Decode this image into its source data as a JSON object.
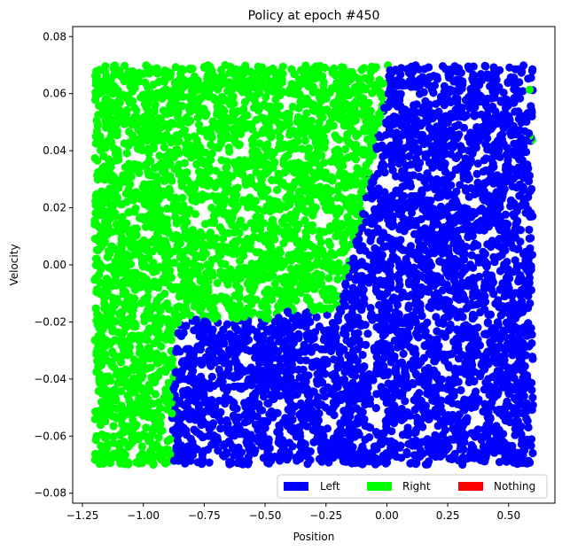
{
  "chart_data": {
    "type": "scatter",
    "title": "Policy at epoch #450",
    "xlabel": "Position",
    "ylabel": "Velocity",
    "xlim": [
      -1.29,
      0.69
    ],
    "ylim": [
      -0.0835,
      0.0835
    ],
    "xticks": [
      -1.25,
      -1.0,
      -0.75,
      -0.5,
      -0.25,
      0.0,
      0.25,
      0.5
    ],
    "xtick_labels": [
      "−1.25",
      "−1.00",
      "−0.75",
      "−0.50",
      "−0.25",
      "0.00",
      "0.25",
      "0.50"
    ],
    "yticks": [
      -0.08,
      -0.06,
      -0.04,
      -0.02,
      0.0,
      0.02,
      0.04,
      0.06,
      0.08
    ],
    "ytick_labels": [
      "−0.08",
      "−0.06",
      "−0.04",
      "−0.02",
      "0.00",
      "0.02",
      "0.04",
      "0.06",
      "0.08"
    ],
    "grid": false,
    "legend_position": "lower-right",
    "data_extent": {
      "x": [
        -1.2,
        0.6
      ],
      "y": [
        -0.07,
        0.07
      ]
    },
    "series": [
      {
        "name": "Left",
        "color": "#0000ff"
      },
      {
        "name": "Right",
        "color": "#00ff00"
      },
      {
        "name": "Nothing",
        "color": "#ff0000"
      }
    ],
    "decision_boundary": [
      [
        -0.886,
        -0.07
      ],
      [
        -0.886,
        -0.058
      ],
      [
        -0.88,
        -0.048
      ],
      [
        -0.87,
        -0.035
      ],
      [
        -0.858,
        -0.022
      ],
      [
        -0.83,
        -0.019
      ],
      [
        -0.79,
        -0.025
      ],
      [
        -0.74,
        -0.033
      ],
      [
        -0.7,
        -0.038
      ],
      [
        -0.665,
        -0.043
      ],
      [
        -0.61,
        -0.041
      ],
      [
        -0.56,
        -0.036
      ],
      [
        -0.5,
        -0.027
      ],
      [
        -0.455,
        -0.018
      ],
      [
        -0.425,
        -0.016
      ],
      [
        -0.395,
        -0.022
      ],
      [
        -0.37,
        -0.03
      ],
      [
        -0.33,
        -0.031
      ],
      [
        -0.3,
        -0.035
      ],
      [
        -0.26,
        -0.041
      ],
      [
        -0.245,
        -0.039
      ],
      [
        -0.205,
        -0.02
      ],
      [
        -0.16,
        -0.002
      ],
      [
        -0.1,
        0.018
      ],
      [
        -0.07,
        0.032
      ],
      [
        -0.035,
        0.046
      ],
      [
        0.0,
        0.06
      ],
      [
        0.005,
        0.07
      ]
    ]
  }
}
